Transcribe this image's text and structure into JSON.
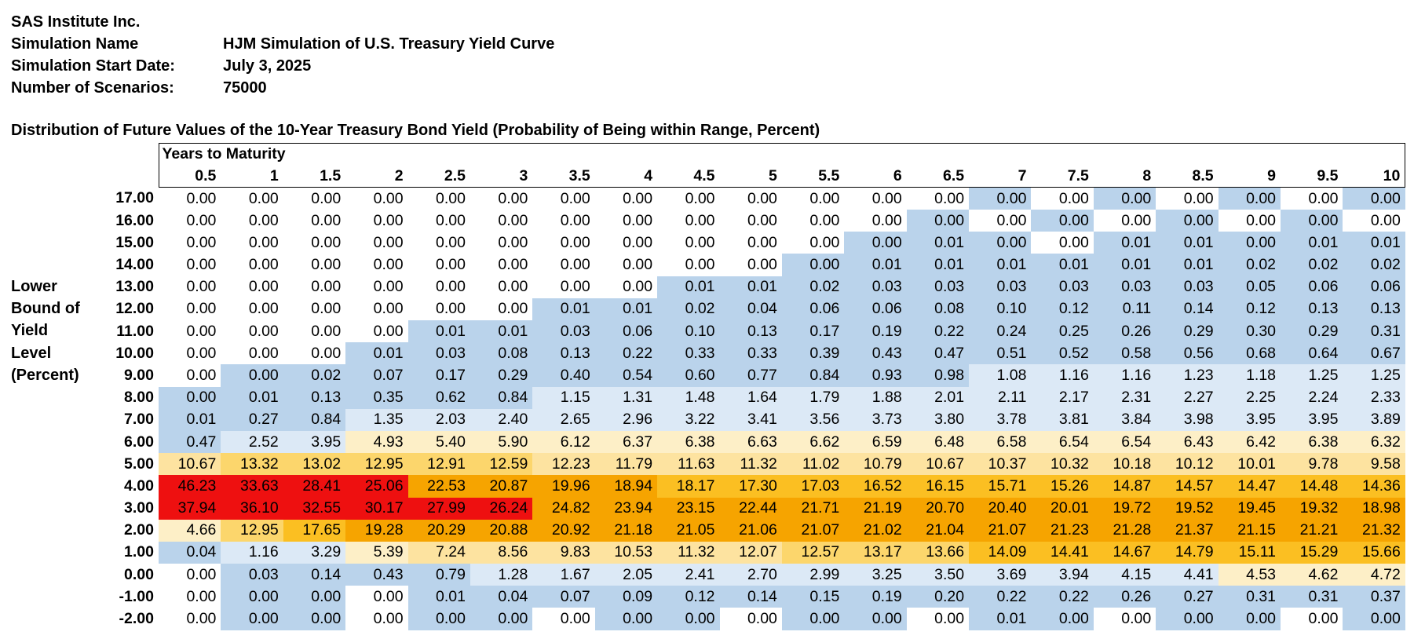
{
  "header": {
    "company": "SAS Institute Inc.",
    "rows": [
      {
        "label": "Simulation Name",
        "value": "HJM Simulation of U.S. Treasury Yield Curve"
      },
      {
        "label": "Simulation Start Date:",
        "value": "July 3, 2025"
      },
      {
        "label": "Number of Scenarios:",
        "value": "75000"
      }
    ]
  },
  "table": {
    "title": "Distribution of Future Values of the 10-Year Treasury Bond Yield (Probability of Being within Range, Percent)",
    "column_group_label": "Years to Maturity",
    "row_axis_label": [
      "Lower",
      "Bound of",
      "Yield",
      "Level",
      "(Percent)"
    ],
    "columns": [
      "0.5",
      "1",
      "1.5",
      "2",
      "2.5",
      "3",
      "3.5",
      "4",
      "4.5",
      "5",
      "5.5",
      "6",
      "6.5",
      "7",
      "7.5",
      "8",
      "8.5",
      "9",
      "9.5",
      "10"
    ],
    "rows": [
      {
        "label": "17.00",
        "values": [
          "0.00",
          "0.00",
          "0.00",
          "0.00",
          "0.00",
          "0.00",
          "0.00",
          "0.00",
          "0.00",
          "0.00",
          "0.00",
          "0.00",
          "0.00",
          "0.00",
          "0.00",
          "0.00",
          "0.00",
          "0.00",
          "0.00",
          "0.00"
        ]
      },
      {
        "label": "16.00",
        "values": [
          "0.00",
          "0.00",
          "0.00",
          "0.00",
          "0.00",
          "0.00",
          "0.00",
          "0.00",
          "0.00",
          "0.00",
          "0.00",
          "0.00",
          "0.00",
          "0.00",
          "0.00",
          "0.00",
          "0.00",
          "0.00",
          "0.00",
          "0.00"
        ]
      },
      {
        "label": "15.00",
        "values": [
          "0.00",
          "0.00",
          "0.00",
          "0.00",
          "0.00",
          "0.00",
          "0.00",
          "0.00",
          "0.00",
          "0.00",
          "0.00",
          "0.00",
          "0.01",
          "0.00",
          "0.00",
          "0.01",
          "0.01",
          "0.00",
          "0.01",
          "0.01"
        ]
      },
      {
        "label": "14.00",
        "values": [
          "0.00",
          "0.00",
          "0.00",
          "0.00",
          "0.00",
          "0.00",
          "0.00",
          "0.00",
          "0.00",
          "0.00",
          "0.00",
          "0.01",
          "0.01",
          "0.01",
          "0.01",
          "0.01",
          "0.01",
          "0.02",
          "0.02",
          "0.02"
        ]
      },
      {
        "label": "13.00",
        "values": [
          "0.00",
          "0.00",
          "0.00",
          "0.00",
          "0.00",
          "0.00",
          "0.00",
          "0.00",
          "0.01",
          "0.01",
          "0.02",
          "0.03",
          "0.03",
          "0.03",
          "0.03",
          "0.03",
          "0.03",
          "0.05",
          "0.06",
          "0.06"
        ]
      },
      {
        "label": "12.00",
        "values": [
          "0.00",
          "0.00",
          "0.00",
          "0.00",
          "0.00",
          "0.00",
          "0.01",
          "0.01",
          "0.02",
          "0.04",
          "0.06",
          "0.06",
          "0.08",
          "0.10",
          "0.12",
          "0.11",
          "0.14",
          "0.12",
          "0.13",
          "0.13"
        ]
      },
      {
        "label": "11.00",
        "values": [
          "0.00",
          "0.00",
          "0.00",
          "0.00",
          "0.01",
          "0.01",
          "0.03",
          "0.06",
          "0.10",
          "0.13",
          "0.17",
          "0.19",
          "0.22",
          "0.24",
          "0.25",
          "0.26",
          "0.29",
          "0.30",
          "0.29",
          "0.31"
        ]
      },
      {
        "label": "10.00",
        "values": [
          "0.00",
          "0.00",
          "0.00",
          "0.01",
          "0.03",
          "0.08",
          "0.13",
          "0.22",
          "0.33",
          "0.33",
          "0.39",
          "0.43",
          "0.47",
          "0.51",
          "0.52",
          "0.58",
          "0.56",
          "0.68",
          "0.64",
          "0.67"
        ]
      },
      {
        "label": "9.00",
        "values": [
          "0.00",
          "0.00",
          "0.02",
          "0.07",
          "0.17",
          "0.29",
          "0.40",
          "0.54",
          "0.60",
          "0.77",
          "0.84",
          "0.93",
          "0.98",
          "1.08",
          "1.16",
          "1.16",
          "1.23",
          "1.18",
          "1.25",
          "1.25"
        ]
      },
      {
        "label": "8.00",
        "values": [
          "0.00",
          "0.01",
          "0.13",
          "0.35",
          "0.62",
          "0.84",
          "1.15",
          "1.31",
          "1.48",
          "1.64",
          "1.79",
          "1.88",
          "2.01",
          "2.11",
          "2.17",
          "2.31",
          "2.27",
          "2.25",
          "2.24",
          "2.33"
        ]
      },
      {
        "label": "7.00",
        "values": [
          "0.01",
          "0.27",
          "0.84",
          "1.35",
          "2.03",
          "2.40",
          "2.65",
          "2.96",
          "3.22",
          "3.41",
          "3.56",
          "3.73",
          "3.80",
          "3.78",
          "3.81",
          "3.84",
          "3.98",
          "3.95",
          "3.95",
          "3.89"
        ]
      },
      {
        "label": "6.00",
        "values": [
          "0.47",
          "2.52",
          "3.95",
          "4.93",
          "5.40",
          "5.90",
          "6.12",
          "6.37",
          "6.38",
          "6.63",
          "6.62",
          "6.59",
          "6.48",
          "6.58",
          "6.54",
          "6.54",
          "6.43",
          "6.42",
          "6.38",
          "6.32"
        ]
      },
      {
        "label": "5.00",
        "values": [
          "10.67",
          "13.32",
          "13.02",
          "12.95",
          "12.91",
          "12.59",
          "12.23",
          "11.79",
          "11.63",
          "11.32",
          "11.02",
          "10.79",
          "10.67",
          "10.37",
          "10.32",
          "10.18",
          "10.12",
          "10.01",
          "9.78",
          "9.58"
        ]
      },
      {
        "label": "4.00",
        "values": [
          "46.23",
          "33.63",
          "28.41",
          "25.06",
          "22.53",
          "20.87",
          "19.96",
          "18.94",
          "18.17",
          "17.30",
          "17.03",
          "16.52",
          "16.15",
          "15.71",
          "15.26",
          "14.87",
          "14.57",
          "14.47",
          "14.48",
          "14.36"
        ]
      },
      {
        "label": "3.00",
        "values": [
          "37.94",
          "36.10",
          "32.55",
          "30.17",
          "27.99",
          "26.24",
          "24.82",
          "23.94",
          "23.15",
          "22.44",
          "21.71",
          "21.19",
          "20.70",
          "20.40",
          "20.01",
          "19.72",
          "19.52",
          "19.45",
          "19.32",
          "18.98"
        ]
      },
      {
        "label": "2.00",
        "values": [
          "4.66",
          "12.95",
          "17.65",
          "19.28",
          "20.29",
          "20.88",
          "20.92",
          "21.18",
          "21.05",
          "21.06",
          "21.07",
          "21.02",
          "21.04",
          "21.07",
          "21.23",
          "21.28",
          "21.37",
          "21.15",
          "21.21",
          "21.32"
        ]
      },
      {
        "label": "1.00",
        "values": [
          "0.04",
          "1.16",
          "3.29",
          "5.39",
          "7.24",
          "8.56",
          "9.83",
          "10.53",
          "11.32",
          "12.07",
          "12.57",
          "13.17",
          "13.66",
          "14.09",
          "14.41",
          "14.67",
          "14.79",
          "15.11",
          "15.29",
          "15.66"
        ]
      },
      {
        "label": "0.00",
        "values": [
          "0.00",
          "0.03",
          "0.14",
          "0.43",
          "0.79",
          "1.28",
          "1.67",
          "2.05",
          "2.41",
          "2.70",
          "2.99",
          "3.25",
          "3.50",
          "3.69",
          "3.94",
          "4.15",
          "4.41",
          "4.53",
          "4.62",
          "4.72"
        ]
      },
      {
        "label": "-1.00",
        "values": [
          "0.00",
          "0.00",
          "0.00",
          "0.00",
          "0.01",
          "0.04",
          "0.07",
          "0.09",
          "0.12",
          "0.14",
          "0.15",
          "0.19",
          "0.20",
          "0.22",
          "0.22",
          "0.26",
          "0.27",
          "0.31",
          "0.31",
          "0.37"
        ]
      },
      {
        "label": "-2.00",
        "values": [
          "0.00",
          "0.00",
          "0.00",
          "0.00",
          "0.00",
          "0.00",
          "0.00",
          "0.00",
          "0.00",
          "0.00",
          "0.00",
          "0.00",
          "0.00",
          "0.01",
          "0.00",
          "0.00",
          "0.00",
          "0.00",
          "0.00",
          "0.00"
        ]
      }
    ]
  },
  "heatmap_colors": {
    "white": "#ffffff",
    "light_blue": "#dce9f6",
    "blue": "#bad3eb",
    "cream": "#fdefc7",
    "light_yellow": "#fde3a0",
    "yellow": "#fcd66c",
    "orange": "#fbbf22",
    "dark_orange": "#f6a400",
    "red": "#ee1010"
  }
}
